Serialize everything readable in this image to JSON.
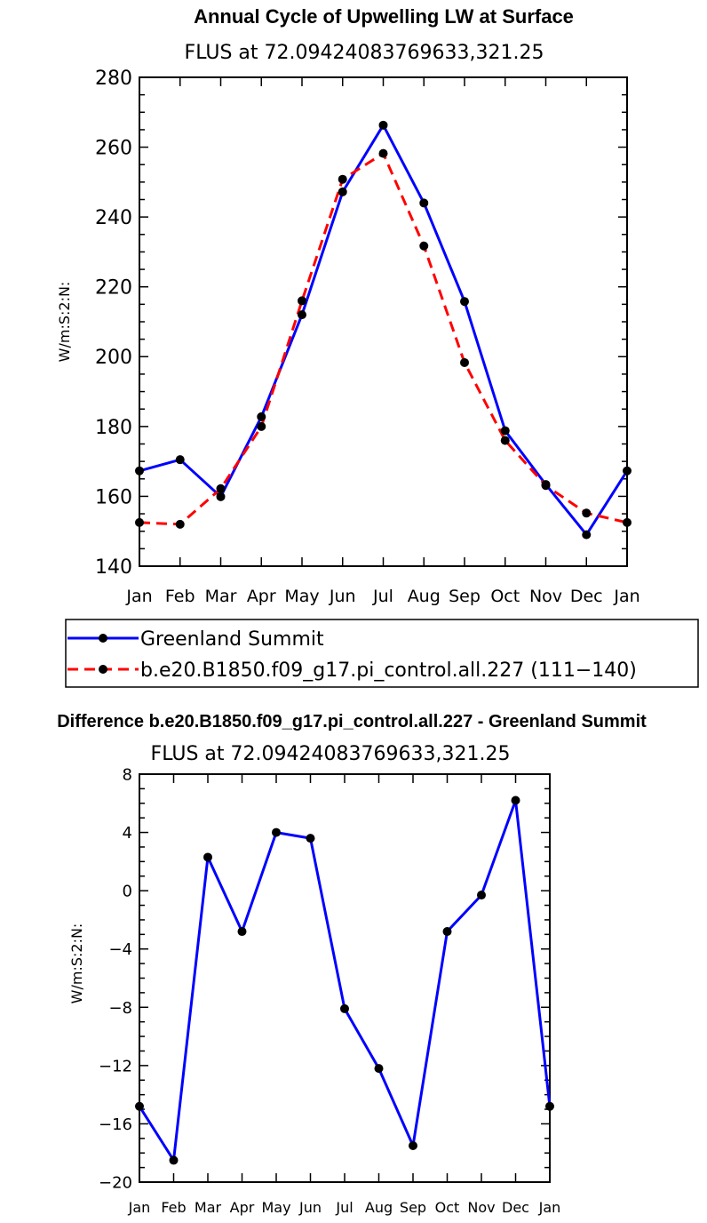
{
  "chart_data": [
    {
      "type": "line",
      "title": "Annual Cycle of Upwelling LW at Surface",
      "subtitle": "FLUS at 72.09424083769633,321.25",
      "ylabel": "W/m:S:2:N:",
      "xlabel": "",
      "categories": [
        "Jan",
        "Feb",
        "Mar",
        "Apr",
        "May",
        "Jun",
        "Jul",
        "Aug",
        "Sep",
        "Oct",
        "Nov",
        "Dec",
        "Jan"
      ],
      "ylim": [
        140,
        280
      ],
      "yticks": [
        140,
        160,
        180,
        200,
        220,
        240,
        260,
        280
      ],
      "series": [
        {
          "name": "Greenland Summit",
          "color": "#0000ff",
          "dash": "solid",
          "values": [
            167.3,
            170.5,
            159.9,
            182.8,
            212.0,
            247.2,
            266.3,
            244.0,
            215.8,
            178.8,
            163.4,
            149.0,
            167.3
          ]
        },
        {
          "name": "b.e20.B1850.f09_g17.pi_control.all.227 (111−140)",
          "color": "#ff0000",
          "dash": "dashed",
          "values": [
            152.5,
            152.0,
            162.2,
            180.0,
            216.0,
            250.8,
            258.2,
            231.7,
            198.3,
            176.0,
            163.1,
            155.2,
            152.5
          ]
        }
      ],
      "legend": "below"
    },
    {
      "type": "line",
      "title": "Difference b.e20.B1850.f09_g17.pi_control.all.227 - Greenland Summit",
      "subtitle": "FLUS at 72.09424083769633,321.25",
      "ylabel": "W/m:S:2:N:",
      "xlabel": "",
      "categories": [
        "Jan",
        "Feb",
        "Mar",
        "Apr",
        "May",
        "Jun",
        "Jul",
        "Aug",
        "Sep",
        "Oct",
        "Nov",
        "Dec",
        "Jan"
      ],
      "ylim": [
        -20,
        8
      ],
      "yticks": [
        -20,
        -16,
        -12,
        -8,
        -4,
        0,
        4,
        8
      ],
      "series": [
        {
          "name": "Difference",
          "color": "#0000ff",
          "dash": "solid",
          "values": [
            -14.8,
            -18.5,
            2.3,
            -2.8,
            4.0,
            3.6,
            -8.1,
            -12.2,
            -17.5,
            -2.8,
            -0.3,
            6.2,
            -14.8
          ]
        }
      ]
    }
  ]
}
